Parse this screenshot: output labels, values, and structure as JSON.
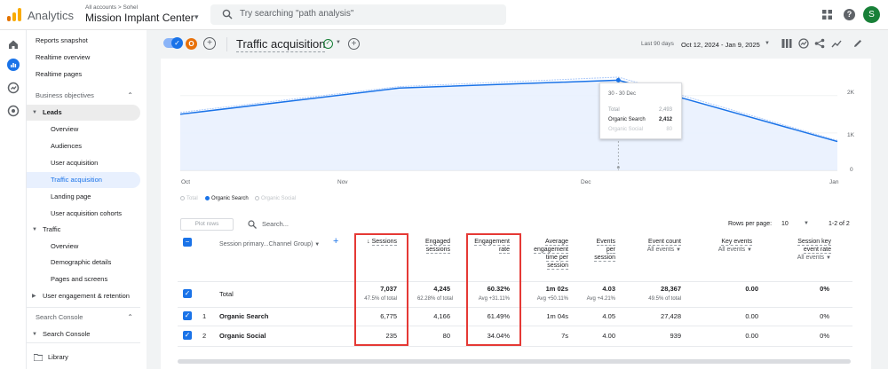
{
  "topbar": {
    "app_name": "Analytics",
    "account_crumb": "All accounts > Sohel",
    "account_name": "Mission Implant Center",
    "search_placeholder": "Try searching \"path analysis\"",
    "avatar_letter": "S"
  },
  "nav": {
    "reports_snapshot": "Reports snapshot",
    "realtime_overview": "Realtime overview",
    "realtime_pages": "Realtime pages",
    "business_objectives": "Business objectives",
    "leads": "Leads",
    "leads_items": [
      "Overview",
      "Audiences",
      "User acquisition",
      "Traffic acquisition",
      "Landing page",
      "User acquisition cohorts"
    ],
    "traffic": "Traffic",
    "traffic_items": [
      "Overview",
      "Demographic details",
      "Pages and screens"
    ],
    "user_engagement": "User engagement & retention",
    "search_console_header": "Search Console",
    "search_console": "Search Console",
    "library": "Library"
  },
  "header": {
    "segment_letter": "O",
    "title": "Traffic acquisition",
    "range_label": "Last 90 days",
    "range_value": "Oct 12, 2024 - Jan 9, 2025"
  },
  "chart_data": {
    "type": "line",
    "x": [
      "Oct",
      "Nov",
      "Dec",
      "Jan"
    ],
    "series": [
      {
        "name": "Total",
        "values": [
          1550,
          2240,
          2493,
          800
        ]
      },
      {
        "name": "Organic Search",
        "values": [
          1500,
          2200,
          2412,
          770
        ]
      },
      {
        "name": "Organic Social",
        "values": [
          0,
          0,
          80,
          0
        ]
      }
    ],
    "yticks": [
      "2K",
      "1K",
      "0"
    ],
    "ylim": [
      0,
      2800
    ],
    "legend_placement": "bottom-left",
    "tooltip": {
      "date": "30 - 30 Dec",
      "rows": [
        {
          "label": "Total",
          "value": "2,493"
        },
        {
          "label": "Organic Search",
          "value": "2,412"
        },
        {
          "label": "Organic Social",
          "value": "80"
        }
      ]
    }
  },
  "table": {
    "plot_rows": "Plot rows",
    "search_placeholder": "Search...",
    "rows_per_page_label": "Rows per page:",
    "rows_per_page": "10",
    "page_range": "1-2 of 2",
    "dim_header": "Session primary...Channel Group)",
    "headers": {
      "sessions": "Sessions",
      "engaged_sessions_1": "Engaged",
      "engaged_sessions_2": "sessions",
      "engagement_rate_1": "Engagement",
      "engagement_rate_2": "rate",
      "avg_time_1": "Average",
      "avg_time_2": "engagement",
      "avg_time_3": "time per",
      "avg_time_4": "session",
      "events_1": "Events",
      "events_2": "per",
      "events_3": "session",
      "event_count": "Event count",
      "key_events": "Key events",
      "session_key_1": "Session key",
      "session_key_2": "event rate",
      "all_events": "All events"
    },
    "total": {
      "label": "Total",
      "sessions": "7,037",
      "sessions_pct": "47.5% of total",
      "engaged": "4,245",
      "engaged_pct": "62.28% of total",
      "rate": "60.32%",
      "rate_avg": "Avg +31.11%",
      "time": "1m 02s",
      "time_avg": "Avg +50.11%",
      "events_per": "4.03",
      "events_per_avg": "Avg +4.21%",
      "event_count": "28,367",
      "event_count_pct": "49.5% of total",
      "key_events": "0.00",
      "session_key_rate": "0%"
    },
    "rows": [
      {
        "idx": "1",
        "channel": "Organic Search",
        "sessions": "6,775",
        "engaged": "4,166",
        "rate": "61.49%",
        "time": "1m 04s",
        "events_per": "4.05",
        "event_count": "27,428",
        "key_events": "0.00",
        "session_key_rate": "0%"
      },
      {
        "idx": "2",
        "channel": "Organic Social",
        "sessions": "235",
        "engaged": "80",
        "rate": "34.04%",
        "time": "7s",
        "events_per": "4.00",
        "event_count": "939",
        "key_events": "0.00",
        "session_key_rate": "0%"
      }
    ]
  },
  "colors": {
    "accent": "#1a73e8",
    "series_search": "#1a73e8",
    "series_total": "#aecbfa",
    "highlight_box": "#e53935"
  }
}
